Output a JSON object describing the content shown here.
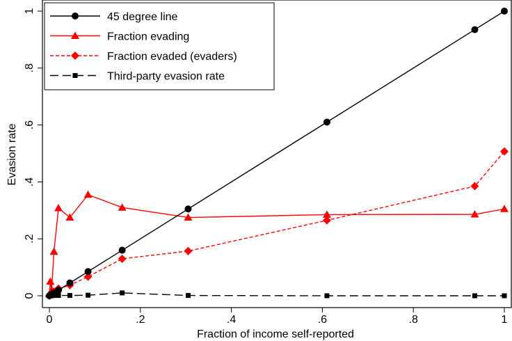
{
  "chart_data": {
    "type": "line",
    "title": "",
    "xlabel": "Fraction of income self-reported",
    "ylabel": "Evasion rate",
    "xlim": [
      0,
      1
    ],
    "ylim": [
      0,
      1
    ],
    "xticks": [
      0,
      0.2,
      0.4,
      0.6,
      0.8,
      1
    ],
    "xtick_labels": [
      "0",
      ".2",
      ".4",
      ".6",
      ".8",
      "1"
    ],
    "yticks": [
      0,
      0.2,
      0.4,
      0.6,
      0.8,
      1
    ],
    "ytick_labels": [
      "0",
      ".2",
      ".4",
      ".6",
      ".8",
      "1"
    ],
    "grid": false,
    "legend_position": "top-left",
    "series": [
      {
        "name": "45 degree line",
        "color": "#000000",
        "marker": "circle",
        "dash": "solid",
        "x": [
          0,
          0.002,
          0.005,
          0.01,
          0.02,
          0.045,
          0.085,
          0.16,
          0.305,
          0.61,
          0.935,
          1
        ],
        "y": [
          0,
          0.002,
          0.005,
          0.01,
          0.02,
          0.045,
          0.085,
          0.16,
          0.305,
          0.61,
          0.935,
          1
        ]
      },
      {
        "name": "Fraction evading",
        "color": "#ff0000",
        "marker": "triangle",
        "dash": "solid",
        "x": [
          0,
          0.002,
          0.005,
          0.01,
          0.02,
          0.045,
          0.085,
          0.16,
          0.305,
          0.61,
          0.935,
          1
        ],
        "y": [
          0.005,
          0.05,
          0.02,
          0.155,
          0.308,
          0.275,
          0.355,
          0.31,
          0.275,
          0.285,
          0.286,
          0.305
        ]
      },
      {
        "name": "Fraction evaded (evaders)",
        "color": "#ff0000",
        "marker": "diamond",
        "dash": "short-dash",
        "x": [
          0,
          0.002,
          0.005,
          0.01,
          0.02,
          0.045,
          0.085,
          0.16,
          0.305,
          0.61,
          0.935,
          1
        ],
        "y": [
          0,
          0.005,
          0.01,
          0.015,
          0.025,
          0.037,
          0.067,
          0.13,
          0.157,
          0.265,
          0.385,
          0.507
        ]
      },
      {
        "name": "Third-party evasion rate",
        "color": "#000000",
        "marker": "square",
        "dash": "long-dash",
        "x": [
          0,
          0.002,
          0.005,
          0.01,
          0.02,
          0.045,
          0.085,
          0.16,
          0.305,
          0.61,
          0.935,
          1
        ],
        "y": [
          0,
          0,
          0,
          0.001,
          0.001,
          0.001,
          0.002,
          0.01,
          0.001,
          0,
          0,
          0
        ]
      }
    ]
  }
}
